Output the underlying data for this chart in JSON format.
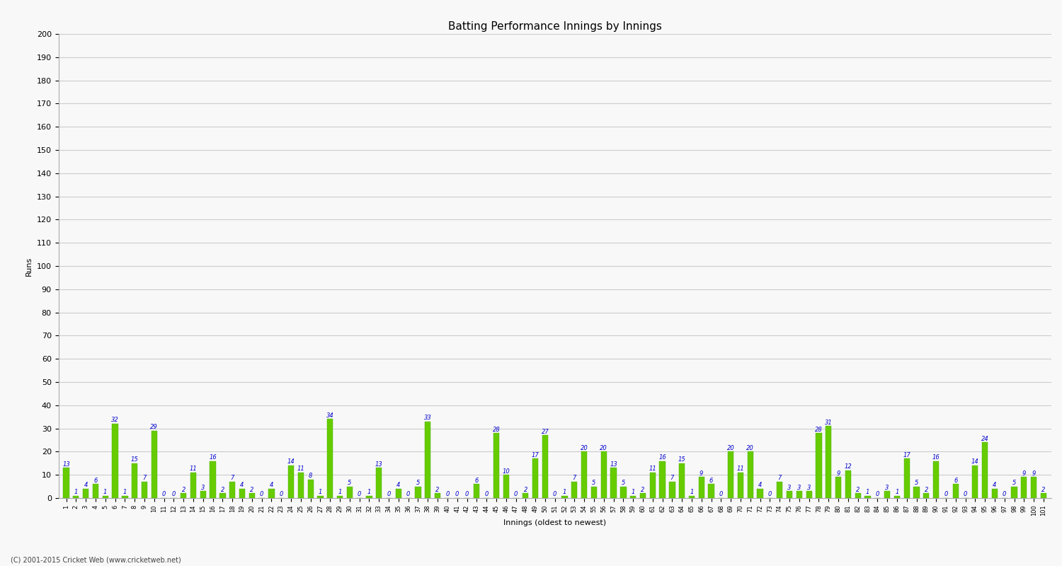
{
  "values": [
    13,
    1,
    4,
    6,
    1,
    32,
    1,
    15,
    7,
    29,
    0,
    0,
    2,
    11,
    3,
    16,
    2,
    7,
    4,
    2,
    0,
    4,
    0,
    14,
    11,
    8,
    1,
    34,
    1,
    5,
    0,
    1,
    13,
    0,
    4,
    0,
    5,
    33,
    2,
    0,
    0,
    0,
    6,
    0,
    28,
    10,
    0,
    2,
    17,
    27,
    0,
    1,
    7,
    20,
    5,
    20,
    13,
    5,
    1,
    2,
    11,
    16,
    7,
    15,
    1,
    9,
    6,
    0,
    20,
    11,
    20,
    4,
    0,
    7,
    3,
    3,
    3,
    28,
    31,
    9,
    12,
    2,
    1,
    0,
    3,
    1,
    17,
    5,
    2,
    16,
    0,
    6,
    0,
    14,
    24,
    4,
    0,
    5,
    9,
    9,
    2
  ],
  "x_labels": [
    "1",
    "2",
    "3",
    "4",
    "5",
    "6",
    "7",
    "8",
    "9",
    "10",
    "11",
    "12",
    "13",
    "14",
    "15",
    "16",
    "17",
    "18",
    "19",
    "20",
    "21",
    "22",
    "23",
    "24",
    "25",
    "26",
    "27",
    "28",
    "29",
    "30",
    "31",
    "32",
    "33",
    "34",
    "35",
    "36",
    "37",
    "38",
    "39",
    "40",
    "41",
    "42",
    "43",
    "44",
    "45",
    "46",
    "47",
    "48",
    "49",
    "50",
    "51",
    "52",
    "53",
    "54",
    "55",
    "56",
    "57",
    "58",
    "59",
    "60",
    "61",
    "62",
    "63",
    "64",
    "65",
    "66",
    "67",
    "68",
    "69",
    "70",
    "71",
    "72",
    "73",
    "74",
    "75",
    "76",
    "77",
    "78",
    "79",
    "80",
    "81",
    "82",
    "83",
    "84",
    "85",
    "86",
    "87",
    "88",
    "89",
    "90",
    "91",
    "92",
    "93",
    "94",
    "95",
    "96",
    "97",
    "98",
    "99",
    "100",
    "101"
  ],
  "bar_color": "#66cc00",
  "bar_edge_color": "#44aa00",
  "label_color": "#0000cc",
  "title": "Batting Performance Innings by Innings",
  "ylabel": "Runs",
  "xlabel": "Innings (oldest to newest)",
  "ylim": [
    0,
    200
  ],
  "yticks": [
    0,
    10,
    20,
    30,
    40,
    50,
    60,
    70,
    80,
    90,
    100,
    110,
    120,
    130,
    140,
    150,
    160,
    170,
    180,
    190,
    200
  ],
  "background_color": "#f8f8f8",
  "grid_color": "#cccccc",
  "footer": "(C) 2001-2015 Cricket Web (www.cricketweb.net)",
  "title_fontsize": 11,
  "label_fontsize": 6,
  "axis_fontsize": 8,
  "footer_fontsize": 7
}
